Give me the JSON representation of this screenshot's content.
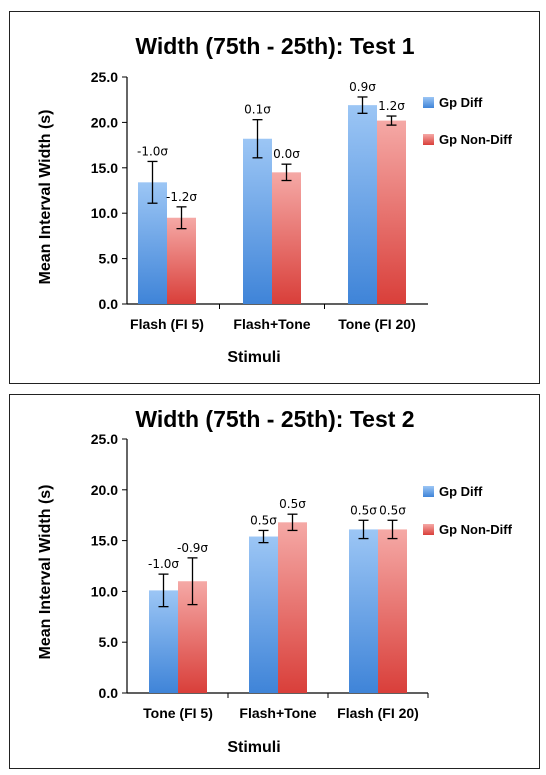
{
  "colors": {
    "gp_diff_top": "#9cc6f5",
    "gp_diff_bottom": "#3f84d8",
    "gp_nondiff_top": "#f5a9a6",
    "gp_nondiff_bottom": "#d93f3a",
    "axis": "#000000"
  },
  "chart_data": [
    {
      "type": "bar",
      "title": "Width (75th - 25th): Test 1",
      "xlabel": "Stimuli",
      "ylabel": "Mean Interval Width (s)",
      "ylim": [
        0,
        25
      ],
      "yticks": [
        "0.0",
        "5.0",
        "10.0",
        "15.0",
        "20.0",
        "25.0"
      ],
      "ytick_values": [
        0,
        5,
        10,
        15,
        20,
        25
      ],
      "grid": false,
      "legend_position": "right",
      "categories": [
        "Flash (FI 5)",
        "Flash+Tone",
        "Tone (FI 20)"
      ],
      "series": [
        {
          "name": "Gp Diff",
          "values": [
            13.4,
            18.2,
            21.9
          ],
          "errors": [
            2.3,
            2.1,
            0.9
          ],
          "labels": [
            "-1.0σ",
            "0.1σ",
            "0.9σ"
          ]
        },
        {
          "name": "Gp Non-Diff",
          "values": [
            9.5,
            14.5,
            20.2
          ],
          "errors": [
            1.2,
            0.9,
            0.5
          ],
          "labels": [
            "-1.2σ",
            "0.0σ",
            "1.2σ"
          ]
        }
      ]
    },
    {
      "type": "bar",
      "title": "Width (75th - 25th): Test 2",
      "xlabel": "Stimuli",
      "ylabel": "Mean Interval Width (s)",
      "ylim": [
        0,
        25
      ],
      "yticks": [
        "0.0",
        "5.0",
        "10.0",
        "15.0",
        "20.0",
        "25.0"
      ],
      "ytick_values": [
        0,
        5,
        10,
        15,
        20,
        25
      ],
      "grid": false,
      "legend_position": "right",
      "categories": [
        "Tone (FI 5)",
        "Flash+Tone",
        "Flash (FI 20)"
      ],
      "series": [
        {
          "name": "Gp Diff",
          "values": [
            10.1,
            15.4,
            16.1
          ],
          "errors": [
            1.6,
            0.6,
            0.9
          ],
          "labels": [
            "-1.0σ",
            "0.5σ",
            "0.5σ"
          ]
        },
        {
          "name": "Gp Non-Diff",
          "values": [
            11.0,
            16.8,
            16.1
          ],
          "errors": [
            2.3,
            0.8,
            0.9
          ],
          "labels": [
            "-0.9σ",
            "0.5σ",
            "0.5σ"
          ]
        }
      ]
    }
  ]
}
